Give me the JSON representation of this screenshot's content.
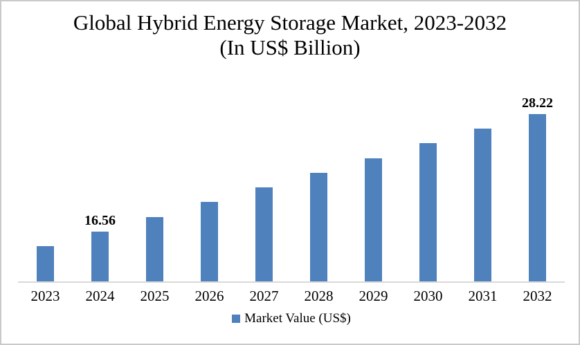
{
  "title": {
    "line1": "Global Hybrid Energy Storage Market, 2023-2032",
    "line2": "(In US$ Billion)"
  },
  "legend": {
    "label": "Market Value (US$)"
  },
  "chart_data": {
    "type": "bar",
    "title": "Global Hybrid Energy Storage Market, 2023-2032 (In US$ Billion)",
    "categories": [
      "2023",
      "2024",
      "2025",
      "2026",
      "2027",
      "2028",
      "2029",
      "2030",
      "2031",
      "2032"
    ],
    "series": [
      {
        "name": "Market Value (US$)",
        "values": [
          15.1,
          16.56,
          18.02,
          19.48,
          20.93,
          22.39,
          23.85,
          25.31,
          26.76,
          28.22
        ]
      }
    ],
    "data_labels": [
      "",
      "16.56",
      "",
      "",
      "",
      "",
      "",
      "",
      "",
      "28.22"
    ],
    "bar_color": "#4F81BD",
    "axis_line_color": "#D9D9D9",
    "ylim": [
      11.62,
      30.2
    ],
    "grid": false,
    "legend_position": "bottom",
    "xlabel": "",
    "ylabel": ""
  }
}
